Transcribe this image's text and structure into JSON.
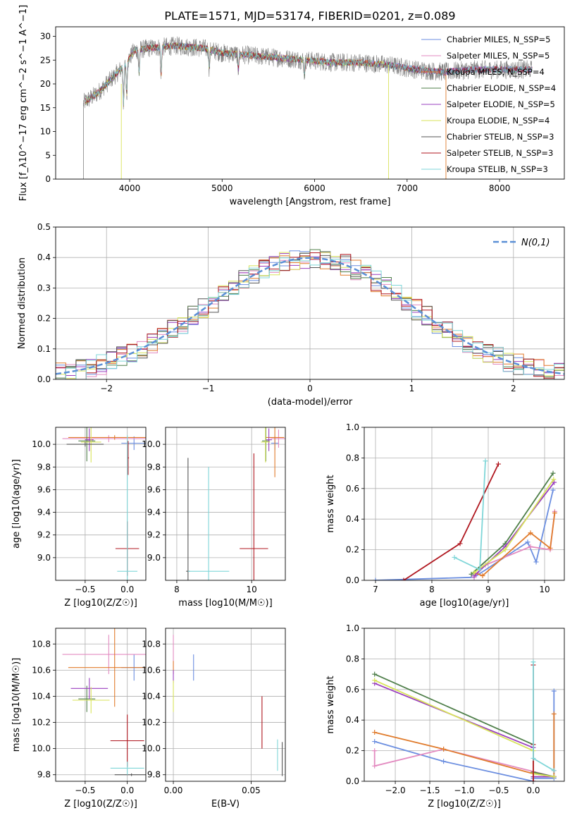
{
  "figure": {
    "title": "PLATE=1571, MJD=53174, FIBERID=0201, z=0.089"
  },
  "colors": {
    "chabrier_miles": "#6b8ee0",
    "salpeter_miles": "#e38ac0",
    "kroupa_miles": "#e07b2c",
    "chabrier_elodie": "#4f7f4a",
    "salpeter_elodie": "#9a3fbf",
    "kroupa_elodie": "#d8e35a",
    "chabrier_stelib": "#555555",
    "salpeter_stelib": "#b0171f",
    "kroupa_stelib": "#7fd6d8",
    "normal_line": "#5b8fd6",
    "grid": "#b0b0b0"
  },
  "chart_data": [
    {
      "id": "spectrum",
      "type": "line",
      "xlabel": "wavelength [Angstrom, rest frame]",
      "ylabel": "Flux [f_λ10^−17 erg cm^−2 s^−1 A^−1]",
      "xlim": [
        3200,
        8700
      ],
      "ylim": [
        0,
        32
      ],
      "xticks": [
        4000,
        5000,
        6000,
        7000,
        8000
      ],
      "yticks": [
        0,
        5,
        10,
        15,
        20,
        25,
        30
      ],
      "grid": false,
      "legend_position": "top-right",
      "legend": [
        {
          "name": "Chabrier MILES, N_SSP=5",
          "color_key": "chabrier_miles"
        },
        {
          "name": "Salpeter MILES, N_SSP=5",
          "color_key": "salpeter_miles"
        },
        {
          "name": "Kroupa MILES, N_SSP=4",
          "color_key": "kroupa_miles"
        },
        {
          "name": "Chabrier ELODIE, N_SSP=4",
          "color_key": "chabrier_elodie"
        },
        {
          "name": "Salpeter ELODIE, N_SSP=5",
          "color_key": "salpeter_elodie"
        },
        {
          "name": "Kroupa ELODIE, N_SSP=4",
          "color_key": "kroupa_elodie"
        },
        {
          "name": "Chabrier STELIB, N_SSP=3",
          "color_key": "chabrier_stelib"
        },
        {
          "name": "Salpeter STELIB, N_SSP=3",
          "color_key": "salpeter_stelib"
        },
        {
          "name": "Kroupa STELIB, N_SSP=3",
          "color_key": "kroupa_stelib"
        }
      ],
      "continuum": {
        "x": [
          3500,
          3650,
          3800,
          3950,
          4050,
          4200,
          4500,
          4800,
          5000,
          5300,
          5600,
          5900,
          6200,
          6500,
          6800,
          7100,
          7400,
          7700,
          8000,
          8300
        ],
        "y": [
          16,
          18,
          21,
          24,
          27,
          27.5,
          28,
          27.5,
          26.5,
          26,
          25.5,
          25,
          24.5,
          24.5,
          24,
          23,
          22.5,
          23,
          23,
          23
        ]
      },
      "data_range": [
        3500,
        8350
      ],
      "model_range": [
        3520,
        7420
      ]
    },
    {
      "id": "residuals",
      "type": "line",
      "xlabel": "(data-model)/error",
      "ylabel": "Normed distribution",
      "xlim": [
        -2.5,
        2.5
      ],
      "ylim": [
        0,
        0.5
      ],
      "xticks": [
        -2,
        -1,
        0,
        1,
        2
      ],
      "yticks": [
        0.0,
        0.1,
        0.2,
        0.3,
        0.4,
        0.5
      ],
      "grid": true,
      "legend_position": "top-right",
      "legend": [
        {
          "name": "N(0,1)",
          "color_key": "normal_line"
        }
      ],
      "bin_width": 0.1
    },
    {
      "id": "age_vs_Z",
      "type": "scatter",
      "xlabel": "Z [log10(Z/Z☉)]",
      "ylabel": "age [log10(age/yr)]",
      "xlim": [
        -0.85,
        0.22
      ],
      "ylim": [
        8.8,
        10.15
      ],
      "xticks": [
        -0.5,
        0.0
      ],
      "yticks": [
        9.0,
        9.2,
        9.4,
        9.6,
        9.8,
        10.0
      ],
      "grid": true,
      "points": [
        {
          "series": "chabrier_miles",
          "x": 0.08,
          "y": 10.01,
          "xerr": 0.15,
          "yerr": 0.06
        },
        {
          "series": "salpeter_miles",
          "x": -0.22,
          "y": 10.05,
          "xerr": 0.55,
          "yerr": 0.03
        },
        {
          "series": "kroupa_miles",
          "x": -0.15,
          "y": 10.06,
          "xerr": 0.55,
          "yerr": 0.02
        },
        {
          "series": "chabrier_elodie",
          "x": -0.48,
          "y": 10.03,
          "xerr": 0.1,
          "yerr": 0.18
        },
        {
          "series": "salpeter_elodie",
          "x": -0.45,
          "y": 10.04,
          "xerr": 0.05,
          "yerr": 0.1
        },
        {
          "series": "kroupa_elodie",
          "x": -0.43,
          "y": 10.02,
          "xerr": 0.12,
          "yerr": 0.18
        },
        {
          "series": "chabrier_stelib",
          "x": -0.5,
          "y": 10.0,
          "xerr": 0.22,
          "yerr": 0.02
        },
        {
          "series": "salpeter_stelib",
          "x": 0.0,
          "y": 9.08,
          "xerr": 0.14,
          "yerr": 0.24
        },
        {
          "series": "salpeter_stelib",
          "x": 0.01,
          "y": 9.88,
          "xerr": 0.01,
          "yerr": 0.15
        },
        {
          "series": "kroupa_stelib",
          "x": 0.0,
          "y": 8.88,
          "xerr": 0.12,
          "yerr": 1.2
        }
      ]
    },
    {
      "id": "age_vs_mass",
      "type": "scatter",
      "xlabel": "mass [log10(M/M☉)]",
      "ylabel": "",
      "xlim": [
        7.7,
        10.9
      ],
      "ylim": [
        8.8,
        10.15
      ],
      "xticks": [
        8,
        10
      ],
      "yticks": [
        9.0,
        9.2,
        9.4,
        9.6,
        9.8,
        10.0
      ],
      "grid": true,
      "points": [
        {
          "series": "chabrier_miles",
          "x": 10.62,
          "y": 10.01,
          "xerr": 0.1,
          "yerr": 0.06
        },
        {
          "series": "salpeter_miles",
          "x": 10.72,
          "y": 10.05,
          "xerr": 0.22,
          "yerr": 0.08
        },
        {
          "series": "kroupa_miles",
          "x": 10.62,
          "y": 10.06,
          "xerr": 0.25,
          "yerr": 0.35
        },
        {
          "series": "chabrier_elodie",
          "x": 10.38,
          "y": 10.03,
          "xerr": 0.1,
          "yerr": 0.18
        },
        {
          "series": "salpeter_elodie",
          "x": 10.46,
          "y": 10.04,
          "xerr": 0.08,
          "yerr": 0.1
        },
        {
          "series": "kroupa_elodie",
          "x": 10.37,
          "y": 10.02,
          "xerr": 0.12,
          "yerr": 0.18
        },
        {
          "series": "chabrier_stelib",
          "x": 8.3,
          "y": 8.88,
          "xerr": 0.05,
          "yerr": 1.0
        },
        {
          "series": "salpeter_stelib",
          "x": 10.06,
          "y": 9.08,
          "xerr": 0.38,
          "yerr": 0.84
        },
        {
          "series": "kroupa_stelib",
          "x": 8.85,
          "y": 8.88,
          "xerr": 0.55,
          "yerr": 0.92
        }
      ]
    },
    {
      "id": "weight_vs_age",
      "type": "line",
      "xlabel": "age [log10(age/yr)]",
      "ylabel": "mass weight",
      "xlim": [
        6.8,
        10.35
      ],
      "ylim": [
        0,
        1.0
      ],
      "xticks": [
        7,
        8,
        9,
        10
      ],
      "yticks": [
        0.0,
        0.2,
        0.4,
        0.6,
        0.8,
        1.0
      ],
      "grid": true,
      "series": [
        {
          "name": "",
          "color_key": "chabrier_miles",
          "x": [
            7.0,
            8.75,
            9.7,
            9.85,
            10.15
          ],
          "y": [
            0.0,
            0.02,
            0.25,
            0.12,
            0.59
          ]
        },
        {
          "name": "",
          "color_key": "salpeter_miles",
          "x": [
            8.75,
            8.95,
            9.75,
            10.1,
            10.18
          ],
          "y": [
            0.02,
            0.1,
            0.22,
            0.2,
            0.45
          ]
        },
        {
          "name": "",
          "color_key": "kroupa_miles",
          "x": [
            8.75,
            8.9,
            9.75,
            10.1,
            10.18
          ],
          "y": [
            0.05,
            0.03,
            0.31,
            0.21,
            0.44
          ]
        },
        {
          "name": "",
          "color_key": "chabrier_elodie",
          "x": [
            8.7,
            9.3,
            10.15
          ],
          "y": [
            0.04,
            0.24,
            0.7
          ]
        },
        {
          "name": "",
          "color_key": "salpeter_elodie",
          "x": [
            8.75,
            9.3,
            10.17
          ],
          "y": [
            0.03,
            0.22,
            0.64
          ]
        },
        {
          "name": "",
          "color_key": "kroupa_elodie",
          "x": [
            8.75,
            9.3,
            10.16
          ],
          "y": [
            0.05,
            0.2,
            0.66
          ]
        },
        {
          "name": "",
          "color_key": "salpeter_stelib",
          "x": [
            7.5,
            8.5,
            9.18
          ],
          "y": [
            0.0,
            0.24,
            0.76
          ]
        },
        {
          "name": "",
          "color_key": "kroupa_stelib",
          "x": [
            8.4,
            8.85,
            8.95
          ],
          "y": [
            0.15,
            0.07,
            0.78
          ]
        }
      ]
    },
    {
      "id": "mass_vs_Z",
      "type": "scatter",
      "xlabel": "Z [log10(Z/Z☉)]",
      "ylabel": "mass [log10(M/M☉)]",
      "xlim": [
        -0.85,
        0.22
      ],
      "ylim": [
        9.75,
        10.92
      ],
      "xticks": [
        -0.5,
        0.0
      ],
      "yticks": [
        9.8,
        10.0,
        10.2,
        10.4,
        10.6,
        10.8
      ],
      "grid": true,
      "points": [
        {
          "series": "chabrier_miles",
          "x": 0.08,
          "y": 10.62,
          "xerr": 0.15,
          "yerr": 0.1
        },
        {
          "series": "salpeter_miles",
          "x": -0.22,
          "y": 10.72,
          "xerr": 0.55,
          "yerr": 0.15
        },
        {
          "series": "kroupa_miles",
          "x": -0.15,
          "y": 10.62,
          "xerr": 0.55,
          "yerr": 0.3
        },
        {
          "series": "chabrier_elodie",
          "x": -0.48,
          "y": 10.38,
          "xerr": 0.1,
          "yerr": 0.1
        },
        {
          "series": "salpeter_elodie",
          "x": -0.45,
          "y": 10.46,
          "xerr": 0.22,
          "yerr": 0.08
        },
        {
          "series": "kroupa_elodie",
          "x": -0.43,
          "y": 10.37,
          "xerr": 0.22,
          "yerr": 0.1
        },
        {
          "series": "chabrier_stelib",
          "x": 0.05,
          "y": 9.8,
          "xerr": 0.2,
          "yerr": 0.01
        },
        {
          "series": "salpeter_stelib",
          "x": 0.0,
          "y": 10.06,
          "xerr": 0.2,
          "yerr": 0.2
        },
        {
          "series": "kroupa_stelib",
          "x": 0.0,
          "y": 9.85,
          "xerr": 0.2,
          "yerr": 0.05
        }
      ]
    },
    {
      "id": "mass_vs_ebv",
      "type": "scatter",
      "xlabel": "E(B-V)",
      "ylabel": "",
      "xlim": [
        -0.005,
        0.072
      ],
      "ylim": [
        9.75,
        10.92
      ],
      "xticks": [
        0.0,
        0.05
      ],
      "yticks": [
        9.8,
        10.0,
        10.2,
        10.4,
        10.6,
        10.8
      ],
      "grid": true,
      "points": [
        {
          "series": "chabrier_miles",
          "x": 0.013,
          "y": 10.62,
          "xerr": 0.0,
          "yerr": 0.1
        },
        {
          "series": "salpeter_miles",
          "x": 0.0,
          "y": 10.72,
          "xerr": 0.0,
          "yerr": 0.15
        },
        {
          "series": "kroupa_miles",
          "x": 0.0,
          "y": 10.62,
          "xerr": 0.0,
          "yerr": 0.05
        },
        {
          "series": "salpeter_elodie",
          "x": 0.0,
          "y": 10.55,
          "xerr": 0.0,
          "yerr": 0.05
        },
        {
          "series": "kroupa_elodie",
          "x": 0.0,
          "y": 10.4,
          "xerr": 0.0,
          "yerr": 0.12
        },
        {
          "series": "salpeter_stelib",
          "x": 0.057,
          "y": 10.2,
          "xerr": 0.0,
          "yerr": 0.2
        },
        {
          "series": "kroupa_stelib",
          "x": 0.067,
          "y": 9.95,
          "xerr": 0.0,
          "yerr": 0.12
        },
        {
          "series": "chabrier_stelib",
          "x": 0.07,
          "y": 9.92,
          "xerr": 0.0,
          "yerr": 0.13
        }
      ]
    },
    {
      "id": "weight_vs_Z",
      "type": "line",
      "xlabel": "Z [log10(Z/Z☉)]",
      "ylabel": "mass weight",
      "xlim": [
        -2.45,
        0.45
      ],
      "ylim": [
        0,
        1.0
      ],
      "xticks": [
        -2.0,
        -1.5,
        -1.0,
        -0.5,
        0.0
      ],
      "yticks": [
        0.0,
        0.2,
        0.4,
        0.6,
        0.8,
        1.0
      ],
      "grid": true,
      "series": [
        {
          "name": "",
          "color_key": "chabrier_miles",
          "x": [
            -2.3,
            -1.3,
            0.0,
            0.0,
            0.3,
            0.3
          ],
          "y": [
            0.26,
            0.13,
            0.0,
            0.02,
            0.02,
            0.59
          ]
        },
        {
          "name": "",
          "color_key": "salpeter_miles",
          "x": [
            -2.3,
            -2.3,
            -1.3,
            0.3,
            0.3
          ],
          "y": [
            0.2,
            0.1,
            0.21,
            0.03,
            0.07
          ]
        },
        {
          "name": "",
          "color_key": "kroupa_miles",
          "x": [
            -2.3,
            -1.3,
            0.0,
            0.3,
            0.3
          ],
          "y": [
            0.32,
            0.21,
            0.05,
            0.03,
            0.44
          ]
        },
        {
          "name": "",
          "color_key": "chabrier_elodie",
          "x": [
            -2.3,
            0.0,
            0.0,
            0.3
          ],
          "y": [
            0.7,
            0.24,
            0.06,
            0.03
          ]
        },
        {
          "name": "",
          "color_key": "salpeter_elodie",
          "x": [
            -2.3,
            0.0,
            0.0,
            0.3
          ],
          "y": [
            0.64,
            0.22,
            0.03,
            0.03
          ]
        },
        {
          "name": "",
          "color_key": "kroupa_elodie",
          "x": [
            -2.3,
            0.0,
            0.0,
            0.3
          ],
          "y": [
            0.66,
            0.2,
            0.05,
            0.03
          ]
        },
        {
          "name": "",
          "color_key": "salpeter_stelib",
          "x": [
            0.0,
            0.0,
            0.0
          ],
          "y": [
            0.76,
            0.24,
            0.0
          ]
        },
        {
          "name": "",
          "color_key": "kroupa_stelib",
          "x": [
            0.0,
            0.0,
            0.3
          ],
          "y": [
            0.78,
            0.15,
            0.07
          ]
        }
      ]
    }
  ]
}
